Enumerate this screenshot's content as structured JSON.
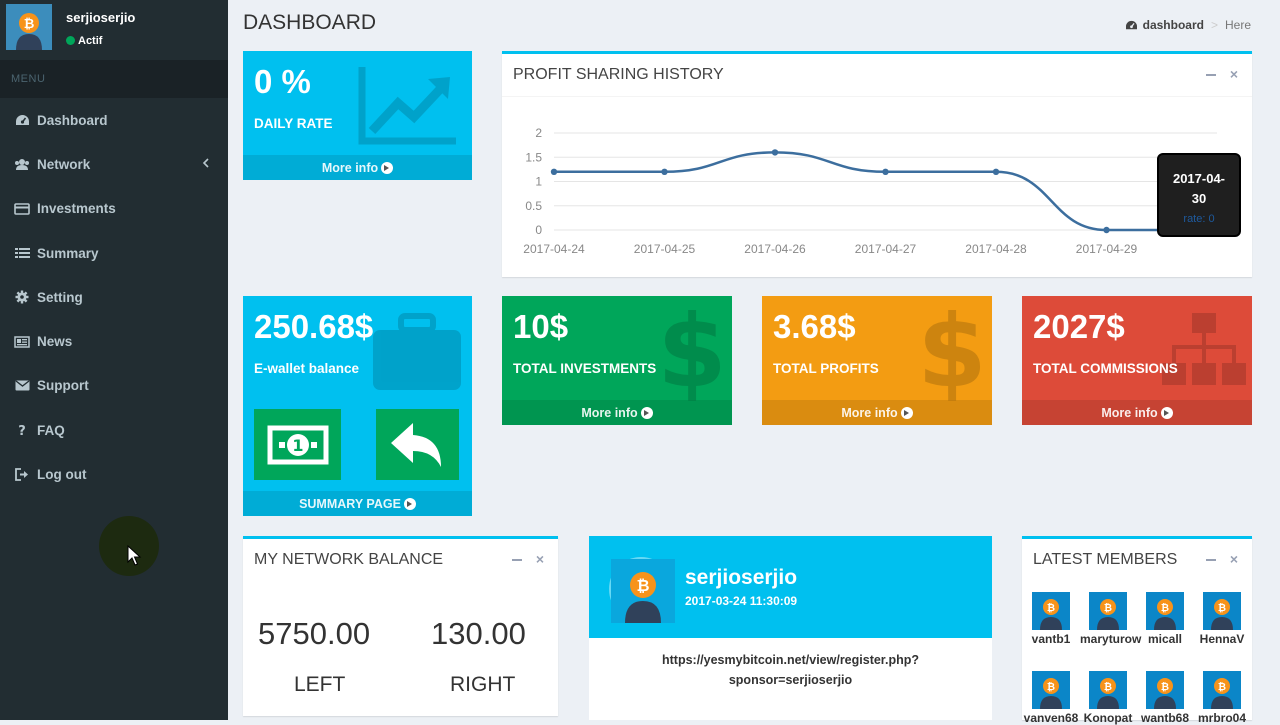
{
  "user": {
    "name": "serjioserjio",
    "status": "Actif"
  },
  "menu": {
    "header": "MENU",
    "items": [
      {
        "label": "Dashboard",
        "icon": "dashboard-icon"
      },
      {
        "label": "Network",
        "icon": "users-icon"
      },
      {
        "label": "Investments",
        "icon": "credit-card-icon"
      },
      {
        "label": "Summary",
        "icon": "list-icon"
      },
      {
        "label": "Setting",
        "icon": "gear-icon"
      },
      {
        "label": "News",
        "icon": "newspaper-icon"
      },
      {
        "label": "Support",
        "icon": "envelope-icon"
      },
      {
        "label": "FAQ",
        "icon": "question-icon"
      },
      {
        "label": "Log out",
        "icon": "sign-out-icon"
      }
    ]
  },
  "header": {
    "title": "DASHBOARD",
    "breadcrumb": [
      "dashboard",
      "Here"
    ]
  },
  "daily_rate": {
    "value": "0 %",
    "label": "DAILY RATE",
    "footer": "More info"
  },
  "profit_history": {
    "title": "PROFIT SHARING HISTORY",
    "tooltip": {
      "date_line1": "2017-04-",
      "date_line2": "30",
      "rate": "rate: 0"
    }
  },
  "chart_data": {
    "type": "line",
    "x": [
      "2017-04-24",
      "2017-04-25",
      "2017-04-26",
      "2017-04-27",
      "2017-04-28",
      "2017-04-29",
      "2017-04-30"
    ],
    "series": [
      {
        "values": [
          1.2,
          1.2,
          1.6,
          1.2,
          1.2,
          0,
          0
        ]
      }
    ],
    "y_ticks": [
      "0",
      "0.5",
      "1",
      "1.5",
      "2"
    ],
    "x_tick_labels": [
      "2017-04-24",
      "2017-04-25",
      "2017-04-26",
      "2017-04-27",
      "2017-04-28",
      "2017-04-29"
    ],
    "ylim": [
      0,
      2
    ],
    "grid": true,
    "line_color": "#3c6e9e"
  },
  "ewallet": {
    "value": "250.68$",
    "label": "E-wallet balance",
    "footer": "SUMMARY PAGE"
  },
  "investments": {
    "value": "10$",
    "label": "TOTAL INVESTMENTS",
    "footer": "More info"
  },
  "profits": {
    "value": "3.68$",
    "label": "TOTAL PROFITS",
    "footer": "More info"
  },
  "commissions": {
    "value": "2027$",
    "label": "TOTAL COMMISSIONS",
    "footer": "More info"
  },
  "network_balance": {
    "title": "MY NETWORK BALANCE",
    "left_value": "5750.00",
    "right_value": "130.00",
    "left_label": "LEFT",
    "right_label": "RIGHT"
  },
  "profile": {
    "name": "serjioserjio",
    "date": "2017-03-24 11:30:09",
    "link_line1": "https://yesmybitcoin.net/view/register.php?",
    "link_line2": "sponsor=serjioserjio"
  },
  "latest_members": {
    "title": "LATEST MEMBERS",
    "members": [
      "vantb1",
      "maryturow",
      "micall",
      "HennaV",
      "vanven68",
      "Konopat",
      "wantb68",
      "mrbro04"
    ]
  },
  "colors": {
    "sidebar": "#222d32",
    "aqua": "#00c0ef",
    "green": "#00a65a",
    "yellow": "#f39c12",
    "red": "#dd4b39",
    "bitcoin": "#f7931a"
  }
}
